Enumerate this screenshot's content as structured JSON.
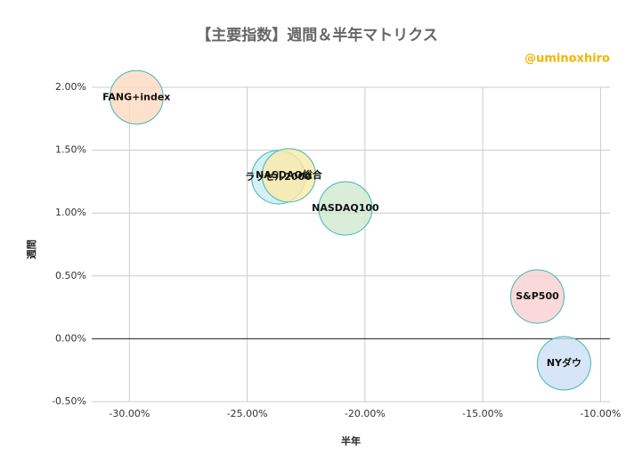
{
  "chart_data": {
    "type": "scatter",
    "title": "【主要指数】週間＆半年マトリクス",
    "subtitle": "@uminoxhiro",
    "x_label": "半年",
    "y_label": "週間",
    "points": [
      {
        "name": "FANG+index",
        "x": -29.7,
        "y": 1.92,
        "color": "#fcd9bf"
      },
      {
        "name": "ラッセル2000",
        "x": -23.68,
        "y": 1.285,
        "color": "#c9ebf3"
      },
      {
        "name": "NASDAQ総合",
        "x": -23.23,
        "y": 1.3,
        "color": "#fbeaa8"
      },
      {
        "name": "NASDAQ100",
        "x": -20.83,
        "y": 1.037,
        "color": "#cfe8cf"
      },
      {
        "name": "S&P500",
        "x": -12.68,
        "y": 0.336,
        "color": "#f8d0d0"
      },
      {
        "name": "NYダウ",
        "x": -11.55,
        "y": -0.195,
        "color": "#cddff8"
      }
    ],
    "xlim": [
      -31.6,
      -9.6
    ],
    "xticks": [
      {
        "value": -30,
        "label": "-30.00%"
      },
      {
        "value": -25,
        "label": "-25.00%"
      },
      {
        "value": -20,
        "label": "-20.00%"
      },
      {
        "value": -15,
        "label": "-15.00%"
      },
      {
        "value": -10,
        "label": "-10.00%"
      }
    ],
    "ylim": [
      -0.5,
      2
    ],
    "yticks": [
      {
        "value": -0.5,
        "label": "-0.50%"
      },
      {
        "value": 0,
        "label": "0.00%"
      },
      {
        "value": 0.5,
        "label": "0.50%"
      },
      {
        "value": 1,
        "label": "1.00%"
      },
      {
        "value": 1.5,
        "label": "1.50%"
      },
      {
        "value": 2,
        "label": "2.00%"
      }
    ],
    "grid": true
  }
}
